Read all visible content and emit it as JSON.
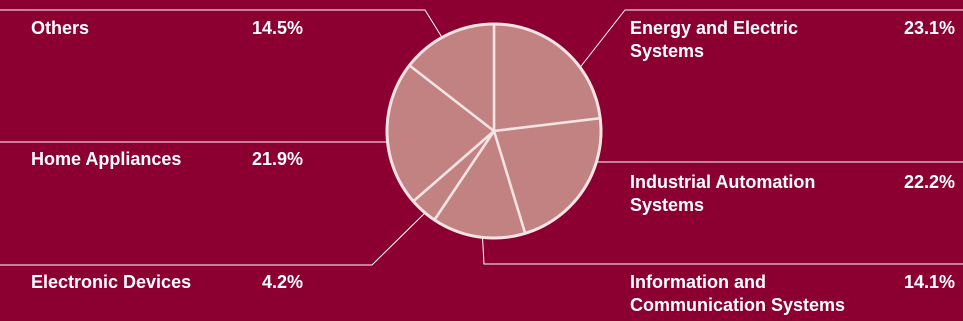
{
  "colors": {
    "background": "#8b0030",
    "slice_fill": "#c38282",
    "slice_stroke": "#f3e3e3",
    "leader_line": "#ffffff",
    "text": "#ffffff"
  },
  "chart_data": {
    "type": "pie",
    "start_angle_deg": 0,
    "direction": "clockwise",
    "slices": [
      {
        "label": "Energy and Electric Systems",
        "label_lines": [
          "Energy and Electric",
          "Systems"
        ],
        "value": 23.1,
        "display": "23.1%"
      },
      {
        "label": "Industrial Automation Systems",
        "label_lines": [
          "Industrial Automation",
          "Systems"
        ],
        "value": 22.2,
        "display": "22.2%"
      },
      {
        "label": "Information and Communication Systems",
        "label_lines": [
          "Information and",
          "Communication Systems"
        ],
        "value": 14.1,
        "display": "14.1%"
      },
      {
        "label": "Electronic Devices",
        "label_lines": [
          "Electronic Devices"
        ],
        "value": 4.2,
        "display": "4.2%"
      },
      {
        "label": "Home Appliances",
        "label_lines": [
          "Home Appliances"
        ],
        "value": 21.9,
        "display": "21.9%"
      },
      {
        "label": "Others",
        "label_lines": [
          "Others"
        ],
        "value": 14.5,
        "display": "14.5%"
      }
    ]
  }
}
